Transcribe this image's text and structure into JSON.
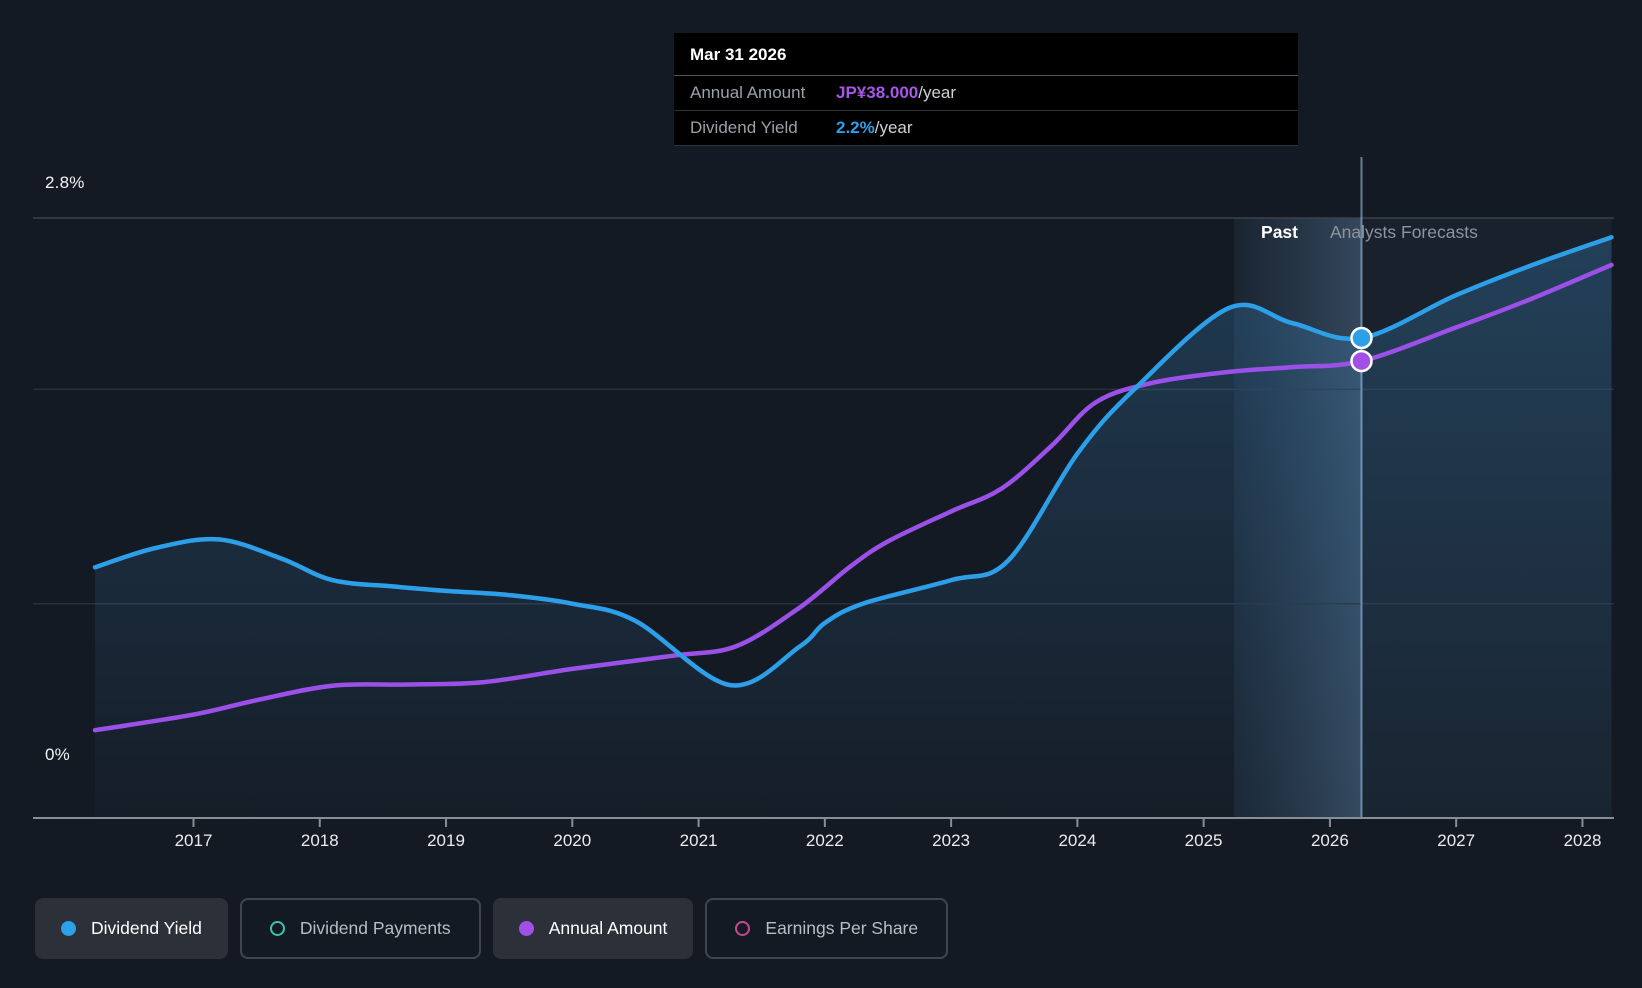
{
  "tooltip": {
    "date": "Mar 31 2026",
    "rows": [
      {
        "label": "Annual Amount",
        "value": "JP¥38.000",
        "suffix": "/year",
        "color": "#a855e8"
      },
      {
        "label": "Dividend Yield",
        "value": "2.2%",
        "suffix": "/year",
        "color": "#2d9fe9"
      }
    ]
  },
  "zones": {
    "past_label": "Past",
    "forecast_label": "Analysts Forecasts"
  },
  "legend": [
    {
      "label": "Dividend Yield",
      "color": "#2da0ea",
      "style": "filled"
    },
    {
      "label": "Dividend Payments",
      "color": "#3fc1ad",
      "style": "outline"
    },
    {
      "label": "Annual Amount",
      "color": "#a24fe8",
      "style": "filled"
    },
    {
      "label": "Earnings Per Share",
      "color": "#c9498e",
      "style": "outline"
    }
  ],
  "chart_data": {
    "type": "line",
    "title": "Dividend yield and annual amount — past and analysts forecasts",
    "x_domain": [
      2016.22,
      2028.23
    ],
    "x_ticks": [
      2017,
      2018,
      2019,
      2020,
      2021,
      2022,
      2023,
      2024,
      2025,
      2026,
      2027,
      2028
    ],
    "y_left": {
      "unit": "%",
      "min": 0,
      "max": 2.8,
      "top_label": "2.8%",
      "bottom_label": "0%",
      "gridlines_pct": [
        1.0,
        2.0,
        2.8
      ]
    },
    "amount_axis": {
      "unit": "JP¥",
      "min": 0,
      "value_at_top": 49.9
    },
    "divider_x": 2026.25,
    "past_band": [
      2025.24,
      2026.25
    ],
    "legend_position": "bottom",
    "series": [
      {
        "name": "Dividend Yield",
        "unit": "%",
        "color": "#2d9fe9",
        "axis": "yield",
        "marker": [
          2026.25,
          2.24
        ],
        "points": [
          [
            2016.22,
            1.17
          ],
          [
            2016.7,
            1.26
          ],
          [
            2017.2,
            1.3
          ],
          [
            2017.7,
            1.21
          ],
          [
            2018.1,
            1.11
          ],
          [
            2018.6,
            1.08
          ],
          [
            2019.0,
            1.06
          ],
          [
            2019.5,
            1.04
          ],
          [
            2020.0,
            1.0
          ],
          [
            2020.5,
            0.92
          ],
          [
            2021.25,
            0.62
          ],
          [
            2021.8,
            0.8
          ],
          [
            2022.0,
            0.91
          ],
          [
            2022.3,
            1.0
          ],
          [
            2023.0,
            1.11
          ],
          [
            2023.45,
            1.2
          ],
          [
            2024.0,
            1.7
          ],
          [
            2024.45,
            2.0
          ],
          [
            2025.2,
            2.38
          ],
          [
            2025.7,
            2.31
          ],
          [
            2026.25,
            2.24
          ],
          [
            2027.0,
            2.44
          ],
          [
            2027.6,
            2.58
          ],
          [
            2028.23,
            2.71
          ]
        ]
      },
      {
        "name": "Annual Amount",
        "unit": "JP¥/year",
        "color": "#9b51e8",
        "axis": "amount",
        "marker": [
          2026.25,
          38.0
        ],
        "points": [
          [
            2016.22,
            7.3
          ],
          [
            2017.0,
            8.6
          ],
          [
            2017.5,
            9.8
          ],
          [
            2018.1,
            11.0
          ],
          [
            2018.7,
            11.1
          ],
          [
            2019.3,
            11.3
          ],
          [
            2020.0,
            12.4
          ],
          [
            2020.8,
            13.5
          ],
          [
            2021.3,
            14.3
          ],
          [
            2021.8,
            17.5
          ],
          [
            2022.2,
            20.9
          ],
          [
            2022.5,
            23.0
          ],
          [
            2023.0,
            25.5
          ],
          [
            2023.4,
            27.4
          ],
          [
            2023.8,
            31.0
          ],
          [
            2024.15,
            34.6
          ],
          [
            2024.6,
            36.2
          ],
          [
            2025.2,
            37.1
          ],
          [
            2025.7,
            37.5
          ],
          [
            2026.25,
            38.0
          ],
          [
            2027.0,
            40.8
          ],
          [
            2027.6,
            43.2
          ],
          [
            2028.23,
            46.0
          ]
        ]
      }
    ]
  }
}
